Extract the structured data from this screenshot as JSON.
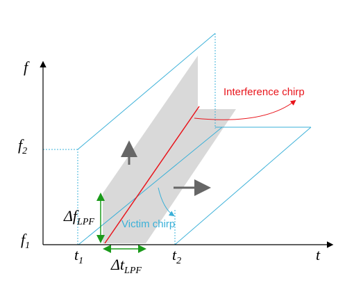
{
  "axes": {
    "y_label": "f",
    "x_label": "t"
  },
  "ticks": {
    "f2": {
      "base": "f",
      "sub": "2"
    },
    "f1": {
      "base": "f",
      "sub": "1"
    },
    "t1": {
      "base": "t",
      "sub": "1"
    },
    "t2": {
      "base": "t",
      "sub": "2"
    }
  },
  "annotations": {
    "delta_f": {
      "base": "Δf",
      "sub": "LPF"
    },
    "delta_t": {
      "base": "Δt",
      "sub": "LPF"
    },
    "interference": "Interference chirp",
    "victim": "Victim chirp"
  }
}
